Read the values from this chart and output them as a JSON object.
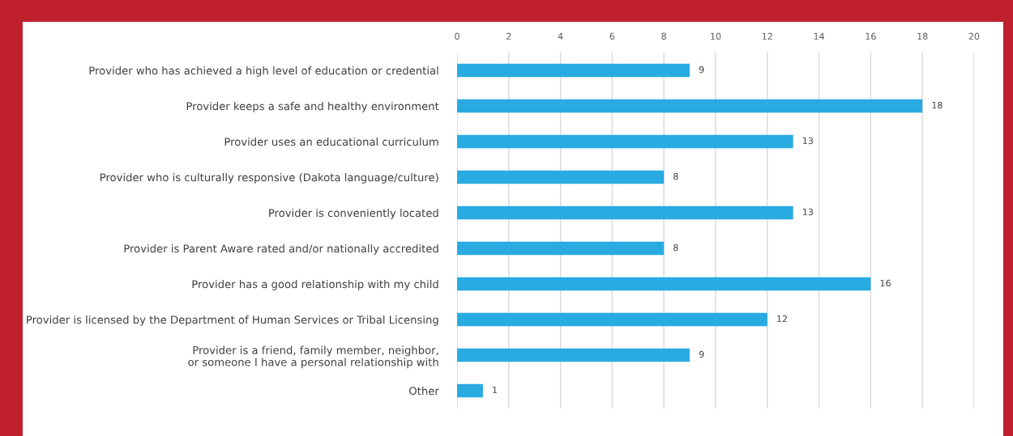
{
  "chart_data": {
    "type": "bar",
    "orientation": "horizontal",
    "categories": [
      "Provider who has achieved a high level of education or credential",
      "Provider keeps a safe and healthy environment",
      "Provider uses an educational curriculum",
      "Provider who is culturally responsive (Dakota language/culture)",
      "Provider is conveniently located",
      "Provider is Parent Aware rated and/or nationally accredited",
      "Provider has a good relationship with my child",
      "Provider is licensed by the Department of Human Services or Tribal Licensing",
      "Provider is a friend, family member, neighbor,\nor someone I have a personal relationship with",
      "Other"
    ],
    "values": [
      9,
      18,
      13,
      8,
      13,
      8,
      16,
      12,
      9,
      1
    ],
    "color": "#29abe2",
    "xlim": [
      0,
      20
    ],
    "xticks": [
      0,
      2,
      4,
      6,
      8,
      10,
      12,
      14,
      16,
      18,
      20
    ],
    "grid": "x",
    "data_labels": true
  }
}
